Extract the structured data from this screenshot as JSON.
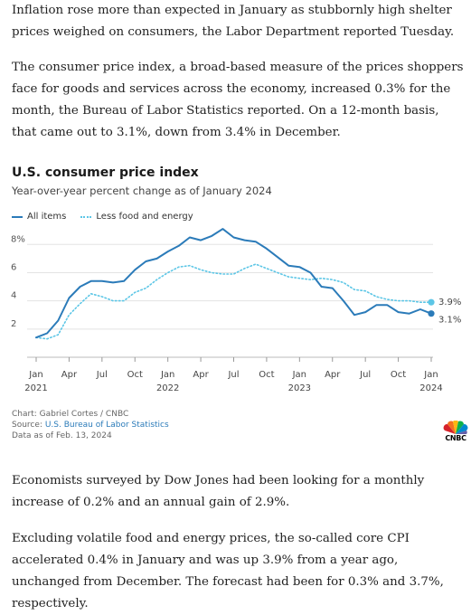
{
  "article": {
    "p1": "Inflation rose more than expected in January as stubbornly high shelter prices weighed on consumers, the Labor Department reported Tuesday.",
    "p2": "The consumer price index, a broad-based measure of the prices shoppers face for goods and services across the economy, increased 0.3% for the month, the Bureau of Labor Statistics reported. On a 12-month basis, that came out to 3.1%, down from 3.4% in December.",
    "p3": "Economists surveyed by Dow Jones had been looking for a monthly increase of 0.2% and an annual gain of 2.9%.",
    "p4": "Excluding volatile food and energy prices, the so-called core CPI accelerated 0.4% in January and was up 3.9% from a year ago, unchanged from December. The forecast had been for 0.3% and 3.7%, respectively."
  },
  "chart_data": {
    "type": "line",
    "title": "U.S. consumer price index",
    "subtitle": "Year-over-year percent change as of January 2024",
    "x_start": "2021-01",
    "x_end": "2024-01",
    "x_ticks": [
      {
        "month": "Jan",
        "year": "2021"
      },
      {
        "month": "Apr",
        "year": ""
      },
      {
        "month": "Jul",
        "year": ""
      },
      {
        "month": "Oct",
        "year": ""
      },
      {
        "month": "Jan",
        "year": "2022"
      },
      {
        "month": "Apr",
        "year": ""
      },
      {
        "month": "Jul",
        "year": ""
      },
      {
        "month": "Oct",
        "year": ""
      },
      {
        "month": "Jan",
        "year": "2023"
      },
      {
        "month": "Apr",
        "year": ""
      },
      {
        "month": "Jul",
        "year": ""
      },
      {
        "month": "Oct",
        "year": ""
      },
      {
        "month": "Jan",
        "year": "2024"
      }
    ],
    "y_ticks": [
      "2",
      "4",
      "6",
      "8%"
    ],
    "ylim": [
      0,
      9.3
    ],
    "grid": true,
    "series": [
      {
        "name": "All items",
        "color": "#2b7bb9",
        "style": "solid",
        "values": [
          1.4,
          1.7,
          2.6,
          4.2,
          5.0,
          5.4,
          5.4,
          5.3,
          5.4,
          6.2,
          6.8,
          7.0,
          7.5,
          7.9,
          8.5,
          8.3,
          8.6,
          9.1,
          8.5,
          8.3,
          8.2,
          7.7,
          7.1,
          6.5,
          6.4,
          6.0,
          5.0,
          4.9,
          4.0,
          3.0,
          3.2,
          3.7,
          3.7,
          3.2,
          3.1,
          3.4,
          3.1
        ],
        "end_label": "3.1%"
      },
      {
        "name": "Less food and energy",
        "color": "#5cc6e6",
        "style": "dotted",
        "values": [
          1.4,
          1.3,
          1.6,
          3.0,
          3.8,
          4.5,
          4.3,
          4.0,
          4.0,
          4.6,
          4.9,
          5.5,
          6.0,
          6.4,
          6.5,
          6.2,
          6.0,
          5.9,
          5.9,
          6.3,
          6.6,
          6.3,
          6.0,
          5.7,
          5.6,
          5.5,
          5.6,
          5.5,
          5.3,
          4.8,
          4.7,
          4.3,
          4.1,
          4.0,
          4.0,
          3.9,
          3.9
        ],
        "end_label": "3.9%"
      }
    ]
  },
  "footer": {
    "credit": "Chart: Gabriel Cortes / CNBC",
    "source_prefix": "Source: ",
    "source_name": "U.S. Bureau of Labor Statistics",
    "data_as_of": "Data as of Feb. 13, 2024"
  },
  "logo": {
    "text": "CNBC"
  }
}
